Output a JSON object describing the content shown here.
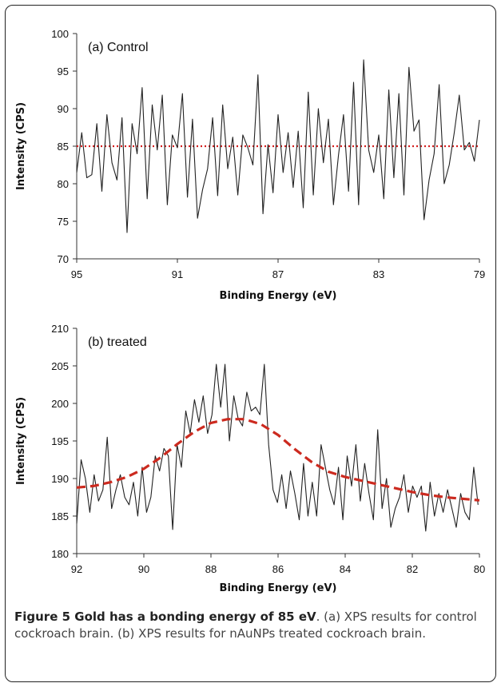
{
  "chart_data": [
    {
      "type": "line",
      "annotation": "(a) Control",
      "xlabel": "Binding Energy (eV)",
      "ylabel": "Intensity (CPS)",
      "xlim": [
        95,
        79
      ],
      "ylim": [
        70,
        100
      ],
      "x_reversed": true,
      "xticks": [
        "95",
        "91",
        "87",
        "83",
        "79"
      ],
      "yticks": [
        "70",
        "75",
        "80",
        "85",
        "90",
        "95",
        "100"
      ],
      "grid": false,
      "reference_line": {
        "y": 85,
        "style": "dotted",
        "color": "#d42020"
      },
      "series": [
        {
          "color": "#222222",
          "x": [
            95.0,
            94.8,
            94.6,
            94.4,
            94.2,
            94.0,
            93.8,
            93.6,
            93.4,
            93.2,
            93.0,
            92.8,
            92.6,
            92.4,
            92.2,
            92.0,
            91.8,
            91.6,
            91.4,
            91.2,
            91.0,
            90.8,
            90.6,
            90.4,
            90.2,
            90.0,
            89.8,
            89.6,
            89.4,
            89.2,
            89.0,
            88.8,
            88.6,
            88.4,
            88.2,
            88.0,
            87.8,
            87.6,
            87.4,
            87.2,
            87.0,
            86.8,
            86.6,
            86.4,
            86.2,
            86.0,
            85.8,
            85.6,
            85.4,
            85.2,
            85.0,
            84.8,
            84.6,
            84.4,
            84.2,
            84.0,
            83.8,
            83.6,
            83.4,
            83.2,
            83.0,
            82.8,
            82.6,
            82.4,
            82.2,
            82.0,
            81.8,
            81.6,
            81.4,
            81.2,
            81.0,
            80.8,
            80.6,
            80.4,
            80.2,
            80.0,
            79.8,
            79.6,
            79.4,
            79.2,
            79.0
          ],
          "y": [
            81.5,
            86.8,
            80.8,
            81.2,
            88.0,
            79.0,
            89.2,
            82.8,
            80.5,
            88.8,
            73.5,
            88.0,
            84.0,
            92.8,
            78.0,
            90.5,
            84.5,
            91.8,
            77.2,
            86.5,
            84.8,
            92.0,
            78.2,
            88.6,
            75.4,
            79.2,
            82.0,
            88.8,
            78.4,
            90.5,
            82.0,
            86.2,
            78.5,
            86.5,
            84.8,
            82.5,
            94.5,
            76.0,
            85.2,
            78.8,
            89.2,
            81.5,
            86.8,
            79.5,
            87.0,
            76.8,
            92.2,
            78.5,
            90.0,
            82.8,
            88.6,
            77.2,
            83.8,
            89.2,
            79.0,
            93.5,
            77.2,
            96.5,
            84.5,
            81.5,
            86.5,
            78.0,
            92.5,
            80.8,
            92.0,
            78.5,
            95.5,
            87.0,
            88.5,
            75.2,
            80.5,
            84.0,
            93.2,
            80.0,
            82.5,
            86.8,
            91.8,
            84.5,
            85.5,
            83.0,
            88.5
          ]
        }
      ]
    },
    {
      "type": "line",
      "annotation": "(b) treated",
      "xlabel": "Binding Energy (eV)",
      "ylabel": "Intensity (CPS)",
      "xlim": [
        92,
        80
      ],
      "ylim": [
        180,
        210
      ],
      "x_reversed": true,
      "xticks": [
        "92",
        "90",
        "88",
        "86",
        "84",
        "82",
        "80"
      ],
      "yticks": [
        "180",
        "185",
        "190",
        "195",
        "200",
        "205",
        "210"
      ],
      "grid": false,
      "series": [
        {
          "color": "#222222",
          "style": "solid",
          "x": [
            92.0,
            91.87,
            91.74,
            91.61,
            91.48,
            91.35,
            91.22,
            91.09,
            90.96,
            90.83,
            90.7,
            90.57,
            90.44,
            90.31,
            90.18,
            90.05,
            89.92,
            89.79,
            89.66,
            89.53,
            89.4,
            89.27,
            89.14,
            89.01,
            88.88,
            88.75,
            88.62,
            88.49,
            88.36,
            88.23,
            88.1,
            87.97,
            87.84,
            87.71,
            87.58,
            87.45,
            87.32,
            87.19,
            87.06,
            86.93,
            86.8,
            86.67,
            86.54,
            86.41,
            86.28,
            86.15,
            86.02,
            85.89,
            85.76,
            85.63,
            85.5,
            85.37,
            85.24,
            85.11,
            84.98,
            84.85,
            84.72,
            84.59,
            84.46,
            84.33,
            84.2,
            84.07,
            83.94,
            83.81,
            83.68,
            83.55,
            83.42,
            83.29,
            83.16,
            83.03,
            82.9,
            82.77,
            82.64,
            82.51,
            82.38,
            82.25,
            82.12,
            81.99,
            81.86,
            81.73,
            81.6,
            81.47,
            81.34,
            81.21,
            81.08,
            80.95,
            80.82,
            80.69,
            80.56,
            80.43,
            80.3,
            80.17,
            80.04
          ],
          "y": [
            184.0,
            192.5,
            190.0,
            185.5,
            190.5,
            187.0,
            188.5,
            195.5,
            186.0,
            188.5,
            190.5,
            187.5,
            186.5,
            189.5,
            185.0,
            191.5,
            185.5,
            187.5,
            193.0,
            191.0,
            194.0,
            193.0,
            183.2,
            194.5,
            191.5,
            199.0,
            196.0,
            200.5,
            197.5,
            201.0,
            196.0,
            198.5,
            205.2,
            199.5,
            205.2,
            195.0,
            201.0,
            198.0,
            197.0,
            201.5,
            199.0,
            199.5,
            198.5,
            205.2,
            194.5,
            188.5,
            186.8,
            190.5,
            186.0,
            191.0,
            188.0,
            184.5,
            192.0,
            185.0,
            189.5,
            185.0,
            194.5,
            191.5,
            188.5,
            186.5,
            191.5,
            184.5,
            193.0,
            189.0,
            194.5,
            187.0,
            192.0,
            188.0,
            184.5,
            196.5,
            186.0,
            190.0,
            183.5,
            186.0,
            187.5,
            190.5,
            185.5,
            189.0,
            187.5,
            189.0,
            183.0,
            189.5,
            185.0,
            188.0,
            185.5,
            188.5,
            186.0,
            183.5,
            188.0,
            185.5,
            184.5,
            191.5,
            186.5
          ]
        },
        {
          "color": "#cc2a1f",
          "style": "dashed",
          "x": [
            92.0,
            91.5,
            91.0,
            90.5,
            90.0,
            89.5,
            89.0,
            88.5,
            88.0,
            87.5,
            87.0,
            86.5,
            86.0,
            85.5,
            85.0,
            84.5,
            84.0,
            83.5,
            83.0,
            82.5,
            82.0,
            81.5,
            81.0,
            80.5,
            80.0
          ],
          "y": [
            188.8,
            189.0,
            189.5,
            190.2,
            191.3,
            192.8,
            194.6,
            196.2,
            197.4,
            197.9,
            197.9,
            197.2,
            195.8,
            193.9,
            192.2,
            190.9,
            190.2,
            189.7,
            189.2,
            188.7,
            188.2,
            187.8,
            187.5,
            187.3,
            187.1
          ]
        }
      ]
    }
  ],
  "caption": {
    "bold": "Figure 5 Gold has a bonding energy of 85 eV",
    "rest": ". (a) XPS results for control cockroach brain. (b) XPS results for nAuNPs treated cockroach brain."
  }
}
